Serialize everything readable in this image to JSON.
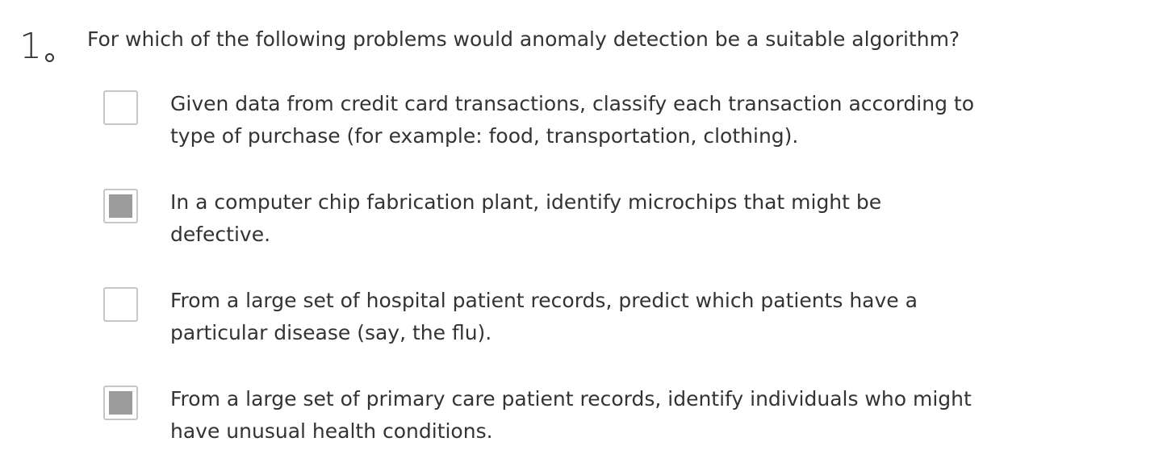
{
  "question": {
    "number": "1",
    "text": "For which of the following problems would anomaly detection be a suitable algorithm?"
  },
  "options": [
    {
      "lines": [
        "Given data from credit card transactions, classify each transaction according to",
        "type of purchase (for example: food, transportation, clothing)."
      ],
      "checked": false
    },
    {
      "lines": [
        "In a computer chip fabrication plant, identify microchips that might be",
        "defective."
      ],
      "checked": true
    },
    {
      "lines": [
        "From a large set of hospital patient records, predict which patients have a",
        "particular disease (say, the flu)."
      ],
      "checked": false
    },
    {
      "lines": [
        "From a large set of primary care patient records, identify individuals who might",
        "have unusual health conditions."
      ],
      "checked": true
    }
  ],
  "colors": {
    "text": "#333333",
    "checkbox_border": "#c6c6c6",
    "checkbox_fill": "#9c9c9c"
  }
}
